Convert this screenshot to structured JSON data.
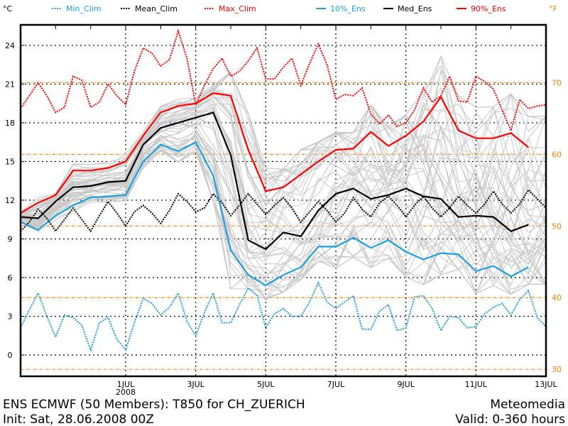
{
  "chart_data": {
    "type": "line",
    "title": "ENS ECMWF (50 Members): T850 for CH_ZUERICH",
    "subtitle": "Init: Sat, 28.06.2008 00Z",
    "credit": "Meteomedia",
    "valid": "Valid: 0-360 hours",
    "ylabel_left": "°C",
    "ylabel_right": "°F",
    "xlim_hours": [
      0,
      360
    ],
    "ylim": [
      -1.5,
      25.8
    ],
    "yticks_c": [
      0,
      3,
      6,
      9,
      12,
      15,
      18,
      21,
      24
    ],
    "yticks_f": [
      30,
      40,
      50,
      60,
      70
    ],
    "xticks": [
      {
        "hour": 72,
        "label": "1JUL",
        "sublabel": "2008"
      },
      {
        "hour": 120,
        "label": "3JUL"
      },
      {
        "hour": 168,
        "label": "5JUL"
      },
      {
        "hour": 216,
        "label": "7JUL"
      },
      {
        "hour": 264,
        "label": "9JUL"
      },
      {
        "hour": 312,
        "label": "11JUL"
      },
      {
        "hour": 360,
        "label": "13JUL"
      }
    ],
    "grid": true,
    "legend_position": "top",
    "clim_step_hours": 6,
    "ens_step_hours": 12,
    "series": [
      {
        "name": "Min_Clim",
        "color": "#1ea0e0",
        "style": "dotted",
        "kind": "clim",
        "values": [
          2.1,
          3.5,
          4.8,
          3.0,
          1.4,
          3.1,
          2.9,
          2.3,
          0.4,
          2.5,
          2.9,
          1.2,
          0.4,
          2.5,
          4.4,
          4.0,
          3.1,
          3.7,
          4.8,
          2.6,
          1.5,
          3.3,
          4.8,
          2.5,
          2.5,
          3.9,
          5.2,
          4.6,
          2.1,
          3.2,
          3.6,
          3.0,
          3.0,
          4.1,
          5.6,
          4.1,
          3.6,
          4.1,
          4.6,
          2.0,
          2.0,
          3.4,
          3.9,
          1.9,
          2.1,
          4.5,
          4.6,
          3.6,
          1.9,
          3.0,
          2.9,
          2.1,
          2.2,
          3.2,
          3.7,
          4.0,
          3.1,
          4.3,
          5.0,
          2.9,
          2.2
        ]
      },
      {
        "name": "Mean_Clim",
        "color": "#000000",
        "style": "dotted",
        "kind": "clim",
        "values": [
          9.6,
          10.3,
          11.3,
          10.6,
          9.6,
          10.5,
          11.4,
          10.5,
          9.6,
          10.8,
          11.9,
          11.0,
          10.0,
          11.1,
          11.6,
          11.0,
          10.2,
          11.2,
          12.5,
          11.9,
          11.1,
          11.4,
          12.5,
          11.8,
          10.8,
          11.6,
          12.5,
          11.7,
          10.9,
          11.6,
          12.2,
          11.4,
          10.3,
          11.1,
          11.9,
          11.2,
          10.3,
          11.0,
          12.2,
          11.3,
          10.7,
          11.8,
          12.3,
          11.6,
          10.7,
          11.6,
          12.3,
          11.4,
          10.7,
          11.4,
          12.3,
          11.6,
          11.0,
          11.7,
          12.7,
          11.7,
          11.0,
          11.7,
          12.8,
          12.1,
          11.4
        ]
      },
      {
        "name": "Max_Clim",
        "color": "#ff0000",
        "style": "dotted",
        "kind": "clim",
        "values": [
          19.1,
          20.1,
          21.1,
          20.1,
          18.8,
          19.2,
          21.6,
          21.3,
          19.2,
          19.6,
          21.0,
          20.1,
          19.4,
          22.0,
          23.8,
          23.4,
          22.4,
          22.9,
          25.1,
          23.0,
          19.4,
          20.9,
          22.2,
          23.0,
          21.6,
          22.0,
          22.8,
          23.8,
          21.4,
          21.4,
          22.3,
          23.0,
          20.9,
          22.6,
          24.1,
          22.5,
          19.8,
          20.2,
          20.1,
          20.7,
          18.7,
          17.9,
          18.6,
          17.7,
          18.0,
          19.0,
          20.7,
          19.6,
          20.1,
          21.6,
          19.7,
          19.6,
          21.6,
          21.2,
          20.6,
          19.0,
          17.4,
          19.8,
          19.1,
          19.3,
          19.4
        ]
      },
      {
        "name": "10%_Ens",
        "color": "#1ea0e0",
        "style": "solid",
        "kind": "ens",
        "values": [
          10.3,
          9.7,
          10.8,
          11.6,
          12.2,
          12.3,
          12.4,
          15.0,
          16.3,
          15.8,
          16.5,
          13.9,
          8.1,
          6.2,
          5.4,
          6.2,
          6.8,
          8.4,
          8.4,
          9.1,
          8.3,
          8.9,
          8.0,
          7.4,
          7.9,
          7.8,
          6.5,
          6.9,
          6.1,
          6.8
        ]
      },
      {
        "name": "Med_Ens",
        "color": "#000000",
        "style": "solid",
        "kind": "ens",
        "values": [
          10.7,
          10.6,
          11.9,
          13.0,
          13.1,
          13.4,
          13.5,
          16.3,
          17.6,
          18.0,
          18.4,
          18.8,
          15.5,
          8.9,
          8.2,
          9.5,
          9.2,
          11.2,
          12.5,
          12.9,
          12.1,
          12.4,
          12.9,
          12.3,
          12.1,
          10.7,
          10.8,
          10.7,
          9.6,
          10.1
        ]
      },
      {
        "name": "90%_Ens",
        "color": "#ff0000",
        "style": "solid",
        "kind": "ens",
        "values": [
          11.0,
          11.8,
          12.4,
          14.3,
          14.3,
          14.5,
          15.0,
          17.0,
          18.8,
          19.3,
          19.5,
          20.3,
          20.1,
          15.9,
          12.7,
          13.0,
          14.0,
          15.0,
          15.9,
          16.0,
          17.3,
          16.2,
          17.0,
          18.1,
          20.0,
          17.4,
          16.8,
          16.8,
          17.2,
          16.1
        ]
      }
    ],
    "ensemble_members": 50,
    "member_color": "#c8c8c8",
    "grid_color_c": "#000000",
    "grid_color_f": "#ff8000"
  }
}
